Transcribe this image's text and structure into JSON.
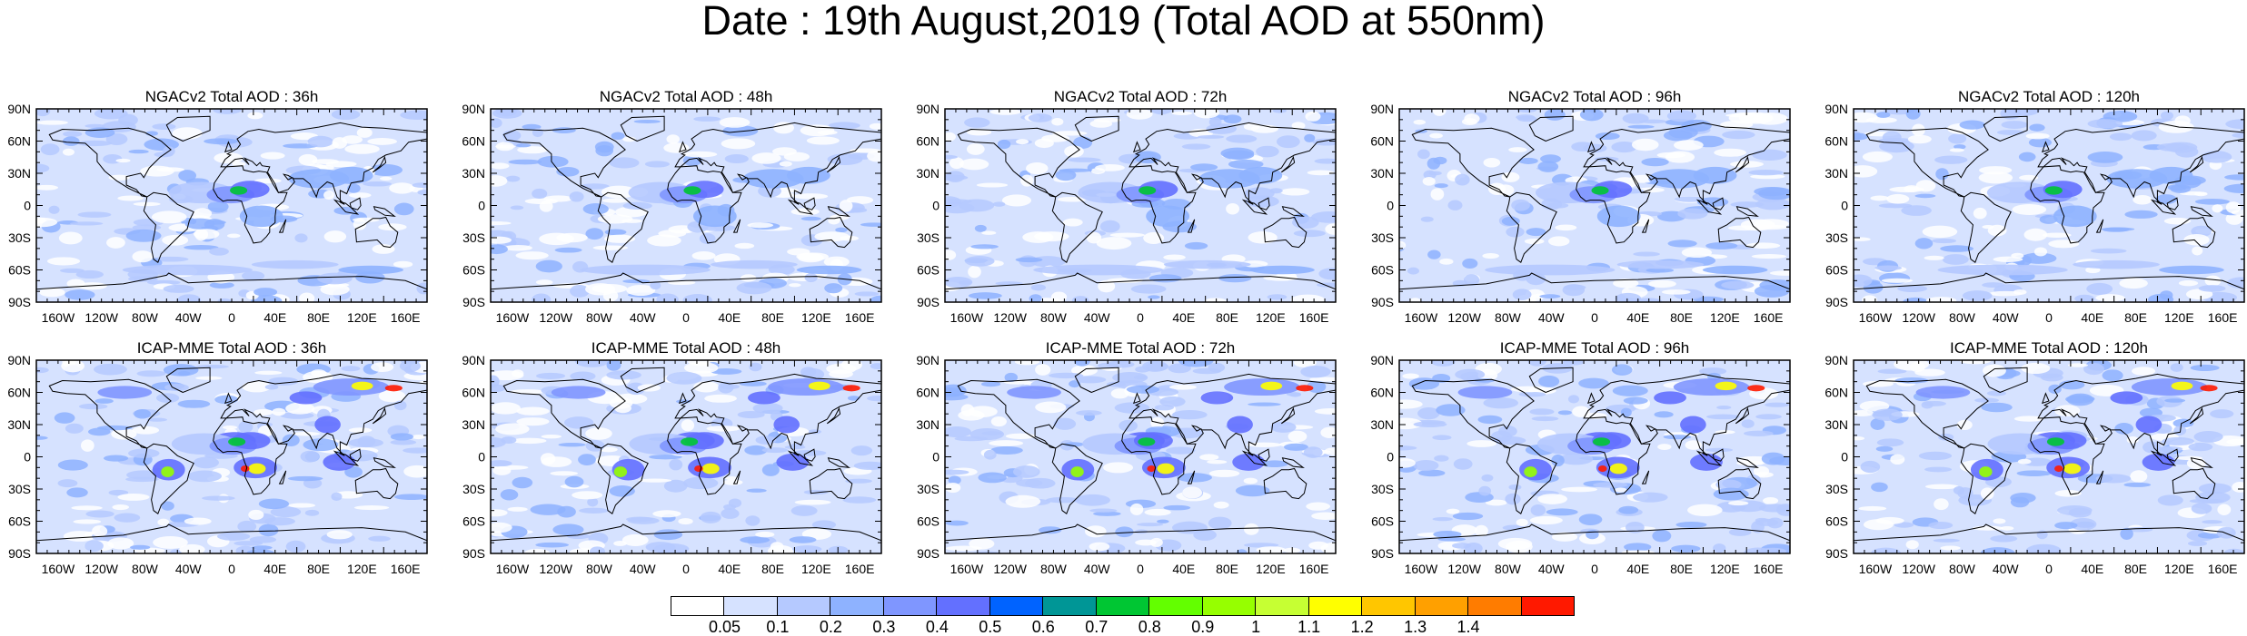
{
  "title": "Date : 19th August,2019 (Total AOD at 550nm)",
  "rows": [
    {
      "name": "NGACv2",
      "panels": [
        {
          "title": "NGACv2 Total AOD : 36h"
        },
        {
          "title": "NGACv2 Total AOD : 48h"
        },
        {
          "title": "NGACv2 Total AOD : 72h"
        },
        {
          "title": "NGACv2 Total AOD : 96h"
        },
        {
          "title": "NGACv2 Total AOD : 120h"
        }
      ]
    },
    {
      "name": "ICAP-MME",
      "panels": [
        {
          "title": "ICAP-MME Total AOD : 36h"
        },
        {
          "title": "ICAP-MME Total AOD : 48h"
        },
        {
          "title": "ICAP-MME Total AOD : 72h"
        },
        {
          "title": "ICAP-MME Total AOD : 96h"
        },
        {
          "title": "ICAP-MME Total AOD : 120h"
        }
      ]
    }
  ],
  "lat_ticks": [
    "90N",
    "60N",
    "30N",
    "0",
    "30S",
    "60S",
    "90S"
  ],
  "lon_ticks": [
    "160W",
    "120W",
    "80W",
    "40W",
    "0",
    "40E",
    "80E",
    "120E",
    "160E"
  ],
  "colorbar": {
    "colors": [
      "#ffffff",
      "#d6e2ff",
      "#b5c9ff",
      "#8eb2ff",
      "#7f96ff",
      "#6370ff",
      "#0063ff",
      "#009696",
      "#00c633",
      "#63ff00",
      "#96ff00",
      "#c6ff33",
      "#ffff00",
      "#ffc600",
      "#ffa000",
      "#ff7c00",
      "#ff1900"
    ],
    "labels": [
      "0.05",
      "0.1",
      "0.2",
      "0.3",
      "0.4",
      "0.5",
      "0.6",
      "0.7",
      "0.8",
      "0.9",
      "1",
      "1.1",
      "1.2",
      "1.3",
      "1.4"
    ]
  }
}
